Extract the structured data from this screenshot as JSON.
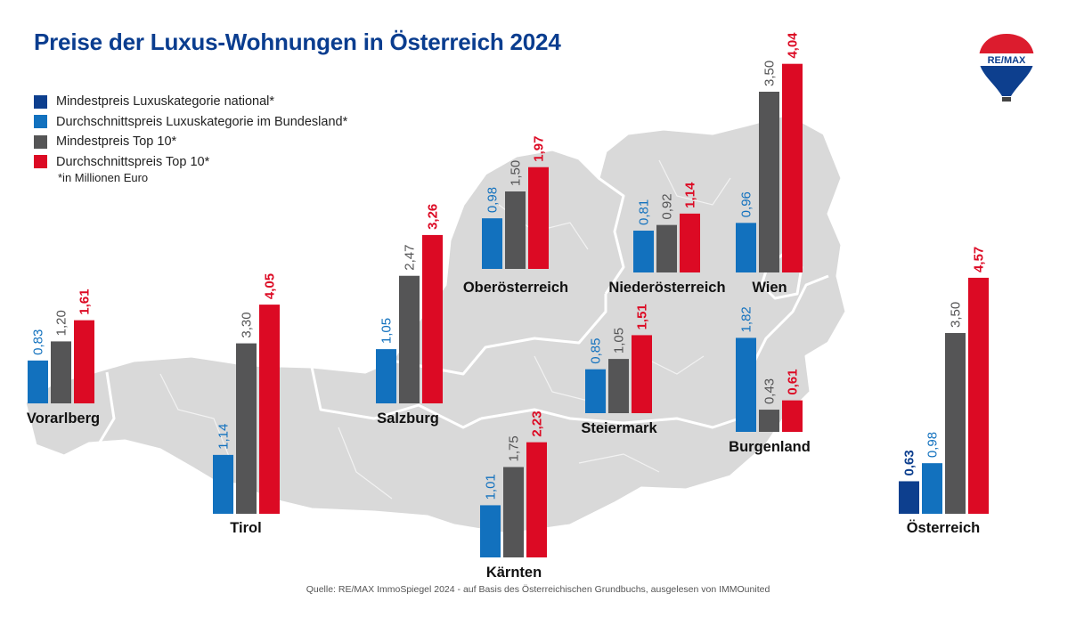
{
  "header": {
    "title": "Preise der Luxus-Wohnungen in Österreich 2024"
  },
  "logo": {
    "text": "RE/MAX",
    "icon": "hot-air-balloon-icon"
  },
  "legend": {
    "items": [
      {
        "label": "Mindestpreis Luxuskategorie national*",
        "color": "#0d3f8e"
      },
      {
        "label": "Durchschnittspreis Luxuskategorie im Bundesland*",
        "color": "#1271be"
      },
      {
        "label": "Mindestpreis Top 10*",
        "color": "#555556"
      },
      {
        "label": "Durchschnittspreis Top 10*",
        "color": "#dc0a24"
      }
    ],
    "unit_note": "*in Millionen Euro"
  },
  "source": "Quelle: RE/MAX ImmoSpiegel 2024 - auf Basis des Österreichischen Grundbuchs, ausgelesen von IMMOunited",
  "chart_data": {
    "type": "bar",
    "unit": "Mio. €",
    "series": [
      {
        "name": "Mindestpreis Luxuskategorie national*",
        "color": "#0d3f8e"
      },
      {
        "name": "Durchschnittspreis Luxuskategorie im Bundesland*",
        "color": "#1271be"
      },
      {
        "name": "Mindestpreis Top 10*",
        "color": "#555556"
      },
      {
        "name": "Durchschnittspreis Top 10*",
        "color": "#dc0a24"
      }
    ],
    "regions": [
      {
        "name": "Vorarlberg",
        "values": [
          null,
          0.83,
          1.2,
          1.61
        ],
        "labels": [
          null,
          "0,83",
          "1,20",
          "1,61"
        ]
      },
      {
        "name": "Tirol",
        "values": [
          null,
          1.14,
          3.3,
          4.05
        ],
        "labels": [
          null,
          "1,14",
          "3,30",
          "4,05"
        ]
      },
      {
        "name": "Salzburg",
        "values": [
          null,
          1.05,
          2.47,
          3.26
        ],
        "labels": [
          null,
          "1,05",
          "2,47",
          "3,26"
        ]
      },
      {
        "name": "Oberösterreich",
        "values": [
          null,
          0.98,
          1.5,
          1.97
        ],
        "labels": [
          null,
          "0,98",
          "1,50",
          "1,97"
        ]
      },
      {
        "name": "Niederösterreich",
        "values": [
          null,
          0.81,
          0.92,
          1.14
        ],
        "labels": [
          null,
          "0,81",
          "0,92",
          "1,14"
        ]
      },
      {
        "name": "Wien",
        "values": [
          null,
          0.96,
          3.5,
          4.04
        ],
        "labels": [
          null,
          "0,96",
          "3,50",
          "4,04"
        ]
      },
      {
        "name": "Steiermark",
        "values": [
          null,
          0.85,
          1.05,
          1.51
        ],
        "labels": [
          null,
          "0,85",
          "1,05",
          "1,51"
        ]
      },
      {
        "name": "Burgenland",
        "values": [
          null,
          1.82,
          0.43,
          0.61
        ],
        "labels": [
          null,
          "1,82",
          "0,43",
          "0,61"
        ]
      },
      {
        "name": "Kärnten",
        "values": [
          null,
          1.01,
          1.75,
          2.23
        ],
        "labels": [
          null,
          "1,01",
          "1,75",
          "2,23"
        ]
      },
      {
        "name": "Österreich",
        "values": [
          0.63,
          0.98,
          3.5,
          4.57
        ],
        "labels": [
          "0,63",
          "0,98",
          "3,50",
          "4,57"
        ]
      }
    ]
  }
}
